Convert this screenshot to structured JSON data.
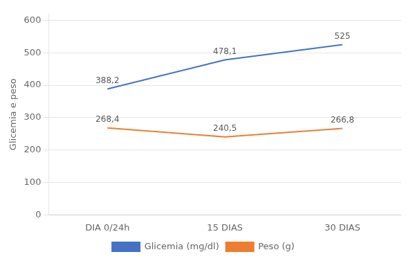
{
  "chart_data": {
    "type": "line",
    "categories": [
      "DIA 0/24h",
      "15 DIAS",
      "30 DIAS"
    ],
    "series": [
      {
        "name": "Glicemia (mg/dl)",
        "color": "#4472C4",
        "values": [
          388.2,
          478.1,
          525
        ],
        "value_labels": [
          "388,2",
          "478,1",
          "525"
        ]
      },
      {
        "name": "Peso (g)",
        "color": "#ED7D31",
        "values": [
          268.4,
          240.5,
          266.8
        ],
        "value_labels": [
          "268,4",
          "240,5",
          "266,8"
        ]
      }
    ],
    "ylabel": "Glicemia e peso",
    "ylim": [
      0,
      620
    ],
    "yticks": [
      0,
      100,
      200,
      300,
      400,
      500,
      600
    ],
    "grid": "y",
    "legend": "bottom",
    "data_labels": true
  }
}
